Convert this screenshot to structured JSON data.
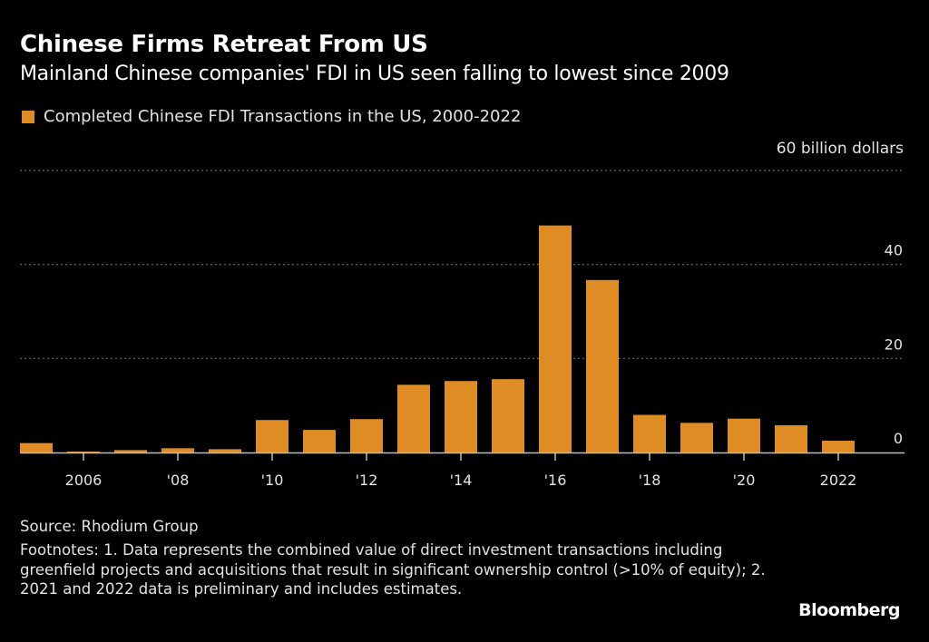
{
  "header": {
    "title": "Chinese Firms Retreat From US",
    "subtitle": "Mainland Chinese companies' FDI in US seen falling to lowest since 2009"
  },
  "legend": {
    "label": "Completed Chinese FDI Transactions in the US, 2000-2022",
    "color": "#e08c25"
  },
  "footer": {
    "source": "Source: Rhodium Group",
    "footnotes": "Footnotes: 1. Data represents the combined value of direct investment transactions including greenfield projects and acquisitions that result in significant ownership control (>10% of equity); 2. 2021 and 2022 data is preliminary and includes estimates.",
    "logo": "Bloomberg"
  },
  "chart_data": {
    "type": "bar",
    "title": "Chinese Firms Retreat From US",
    "subtitle": "Mainland Chinese companies' FDI in US seen falling to lowest since 2009",
    "xlabel": "",
    "ylabel": "billion dollars",
    "unit_label": "60 billion dollars",
    "ylim": [
      0,
      60
    ],
    "yticks": [
      0,
      20,
      40,
      60
    ],
    "ytick_labels": [
      "0",
      "20",
      "40",
      "60 billion dollars"
    ],
    "grid": true,
    "legend_position": "top-left",
    "categories": [
      "2005",
      "2006",
      "2007",
      "2008",
      "2009",
      "2010",
      "2011",
      "2012",
      "2013",
      "2014",
      "2015",
      "2016",
      "2017",
      "2018",
      "2019",
      "2020",
      "2021",
      "2022"
    ],
    "xtick_labels": [
      {
        "category": "2006",
        "label": "2006"
      },
      {
        "category": "2008",
        "label": "'08"
      },
      {
        "category": "2010",
        "label": "'10"
      },
      {
        "category": "2012",
        "label": "'12"
      },
      {
        "category": "2014",
        "label": "'14"
      },
      {
        "category": "2016",
        "label": "'16"
      },
      {
        "category": "2018",
        "label": "'18"
      },
      {
        "category": "2020",
        "label": "'20"
      },
      {
        "category": "2022",
        "label": "2022"
      }
    ],
    "series": [
      {
        "name": "Completed Chinese FDI Transactions in the US, 2000-2022",
        "color": "#e08c25",
        "values": [
          2.0,
          0.2,
          0.5,
          0.9,
          0.7,
          6.9,
          4.8,
          7.1,
          14.4,
          15.2,
          15.6,
          48.3,
          36.7,
          8.0,
          6.3,
          7.2,
          5.8,
          2.5
        ]
      }
    ]
  }
}
